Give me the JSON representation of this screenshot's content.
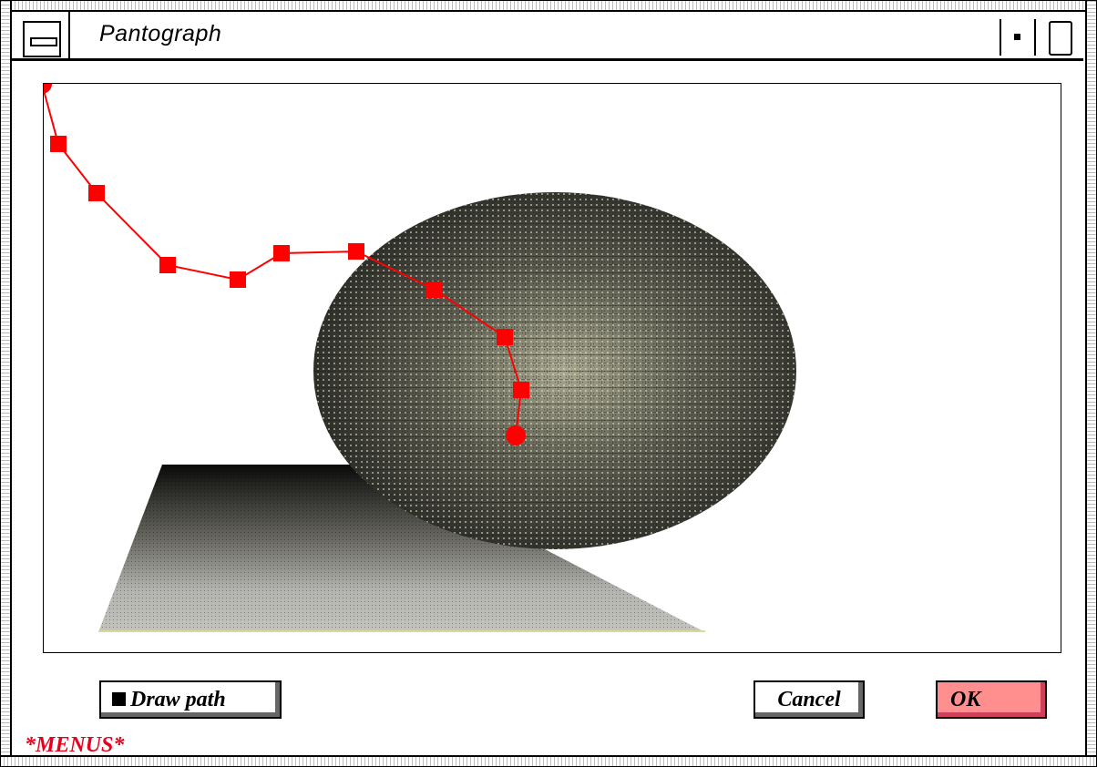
{
  "window": {
    "title": "Pantograph",
    "menus_label": "*MENUS*"
  },
  "toolbar": {
    "draw_path_label": "Draw path",
    "cancel_label": "Cancel",
    "ok_label": "OK"
  },
  "scene": {
    "path_color": "#ff0000",
    "ok_color": "#ff8e8e",
    "menus_color": "#e8001c",
    "path_points": [
      {
        "shape": "circle"
      },
      {
        "shape": "square"
      },
      {
        "shape": "square"
      },
      {
        "shape": "square"
      },
      {
        "shape": "square"
      },
      {
        "shape": "square"
      },
      {
        "shape": "square"
      },
      {
        "shape": "square"
      },
      {
        "shape": "square"
      },
      {
        "shape": "square"
      },
      {
        "shape": "circle"
      }
    ]
  }
}
